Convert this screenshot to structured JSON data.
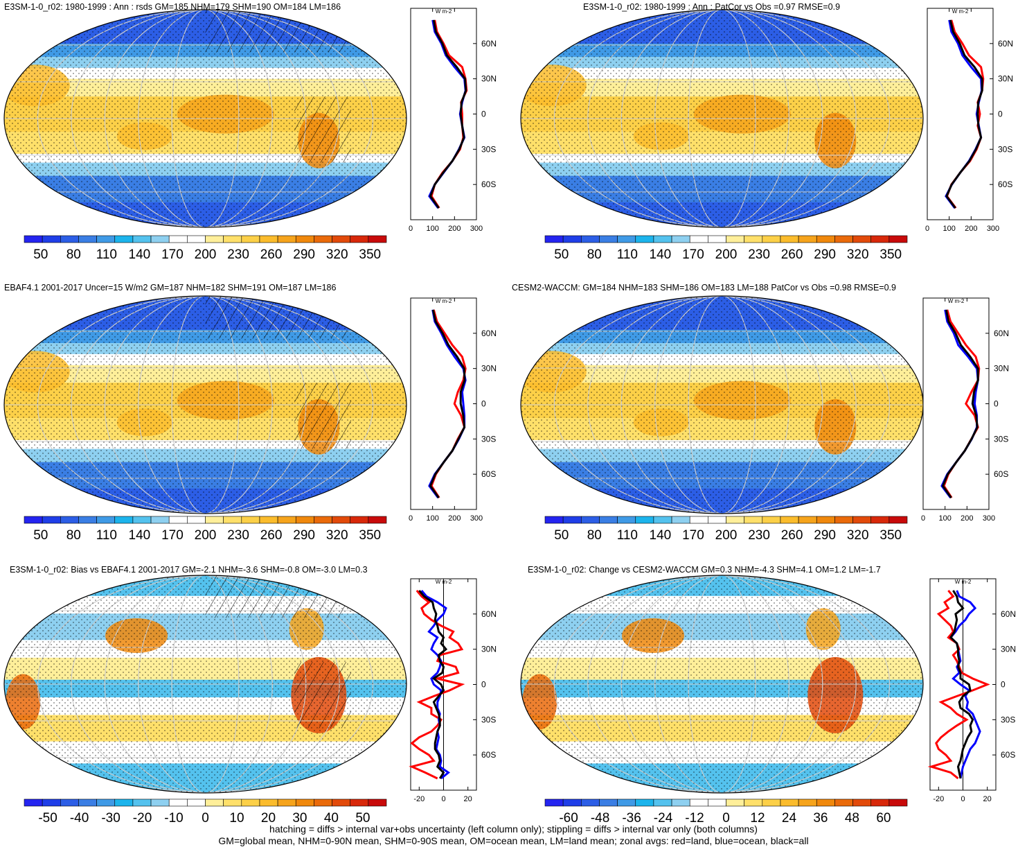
{
  "chart_data": [
    {
      "type": "heatmap",
      "title": "E3SM-1-0_r02: 1980-1999 : Ann : rsds GM=185 NHM=179 SHM=190 OM=184 LM=186",
      "colorbar_ticks": [
        "50",
        "80",
        "110",
        "140",
        "170",
        "200",
        "230",
        "260",
        "290",
        "320",
        "350"
      ],
      "colorbar_range": [
        35,
        365
      ],
      "hatching": true,
      "zonal": {
        "unit": "W m-2",
        "xticks": [
          "0",
          "100",
          "200",
          "300"
        ],
        "xlim": [
          0,
          300
        ],
        "yticks": [
          "60N",
          "30N",
          "0",
          "30S",
          "60S"
        ],
        "lat": [
          80,
          70,
          60,
          50,
          40,
          30,
          20,
          10,
          0,
          -10,
          -20,
          -30,
          -40,
          -50,
          -60,
          -70,
          -80
        ],
        "land": [
          110,
          120,
          150,
          175,
          235,
          250,
          255,
          230,
          235,
          235,
          240,
          225,
          190,
          145,
          110,
          95,
          130
        ],
        "ocean": [
          100,
          110,
          140,
          160,
          200,
          245,
          250,
          235,
          225,
          235,
          245,
          220,
          190,
          150,
          110,
          85,
          125
        ],
        "all": [
          105,
          115,
          145,
          165,
          210,
          248,
          252,
          232,
          228,
          235,
          243,
          222,
          190,
          148,
          110,
          90,
          128
        ]
      }
    },
    {
      "type": "heatmap",
      "title": "E3SM-1-0_r02: 1980-1999 : Ann : PatCor vs Obs =0.97 RMSE=0.9",
      "colorbar_ticks": [
        "50",
        "80",
        "110",
        "140",
        "170",
        "200",
        "230",
        "260",
        "290",
        "320",
        "350"
      ],
      "colorbar_range": [
        35,
        365
      ],
      "hatching": false,
      "zonal": {
        "unit": "W m-2",
        "xticks": [
          "0",
          "100",
          "200",
          "300"
        ],
        "xlim": [
          0,
          300
        ],
        "yticks": [
          "60N",
          "30N",
          "0",
          "30S",
          "60S"
        ],
        "lat": [
          80,
          70,
          60,
          50,
          40,
          30,
          20,
          10,
          0,
          -10,
          -20,
          -30,
          -40,
          -50,
          -60,
          -70,
          -80
        ],
        "land": [
          110,
          125,
          160,
          190,
          245,
          255,
          250,
          230,
          240,
          230,
          245,
          225,
          195,
          150,
          110,
          90,
          130
        ],
        "ocean": [
          100,
          110,
          140,
          160,
          200,
          245,
          248,
          235,
          225,
          235,
          245,
          220,
          190,
          150,
          112,
          85,
          125
        ],
        "all": [
          105,
          118,
          148,
          170,
          215,
          250,
          250,
          232,
          230,
          233,
          245,
          222,
          192,
          150,
          111,
          88,
          128
        ]
      }
    },
    {
      "type": "heatmap",
      "title": "EBAF4.1 2001-2017 Uncer=15 W/m2 GM=187 NHM=182 SHM=191 OM=187 LM=186",
      "colorbar_ticks": [
        "50",
        "80",
        "110",
        "140",
        "170",
        "200",
        "230",
        "260",
        "290",
        "320",
        "350"
      ],
      "colorbar_range": [
        35,
        365
      ],
      "hatching": true,
      "zonal": {
        "unit": "W m-2",
        "xticks": [
          "0",
          "100",
          "200",
          "300"
        ],
        "xlim": [
          0,
          300
        ],
        "yticks": [
          "60N",
          "30N",
          "0",
          "30S",
          "60S"
        ],
        "lat": [
          80,
          70,
          60,
          50,
          40,
          30,
          20,
          10,
          0,
          -10,
          -20,
          -30,
          -40,
          -50,
          -60,
          -70,
          -80
        ],
        "land": [
          105,
          120,
          155,
          190,
          235,
          250,
          240,
          215,
          200,
          230,
          245,
          215,
          190,
          150,
          115,
          95,
          130
        ],
        "ocean": [
          100,
          110,
          140,
          165,
          200,
          240,
          250,
          235,
          240,
          245,
          245,
          220,
          190,
          150,
          110,
          85,
          125
        ],
        "all": [
          102,
          114,
          146,
          172,
          212,
          244,
          246,
          228,
          228,
          240,
          245,
          218,
          190,
          150,
          112,
          90,
          128
        ]
      }
    },
    {
      "type": "heatmap",
      "title": "CESM2-WACCM: GM=184 NHM=183 SHM=186 OM=183 LM=188 PatCor vs Obs =0.98 RMSE=0.9",
      "colorbar_ticks": [
        "50",
        "80",
        "110",
        "140",
        "170",
        "200",
        "230",
        "260",
        "290",
        "320",
        "350"
      ],
      "colorbar_range": [
        35,
        365
      ],
      "hatching": false,
      "zonal": {
        "unit": "W m-2",
        "xticks": [
          "0",
          "100",
          "200",
          "300"
        ],
        "xlim": [
          0,
          300
        ],
        "yticks": [
          "60N",
          "30N",
          "0",
          "30S",
          "60S"
        ],
        "lat": [
          80,
          70,
          60,
          50,
          40,
          30,
          20,
          10,
          0,
          -10,
          -20,
          -30,
          -40,
          -50,
          -60,
          -70,
          -80
        ],
        "land": [
          110,
          125,
          160,
          195,
          240,
          255,
          250,
          220,
          195,
          235,
          250,
          220,
          190,
          150,
          115,
          95,
          130
        ],
        "ocean": [
          100,
          110,
          140,
          160,
          205,
          245,
          250,
          240,
          235,
          245,
          245,
          222,
          190,
          150,
          110,
          85,
          125
        ],
        "all": [
          105,
          116,
          148,
          172,
          215,
          250,
          250,
          232,
          225,
          242,
          247,
          221,
          190,
          150,
          112,
          90,
          128
        ]
      }
    },
    {
      "type": "heatmap",
      "title": "E3SM-1-0_r02: Bias vs EBAF4.1 2001-2017 GM=-2.1 NHM=-3.6 SHM=-0.8 OM=-3.0 LM=0.3",
      "colorbar_ticks": [
        "-50",
        "-40",
        "-30",
        "-20",
        "-10",
        "0",
        "10",
        "20",
        "30",
        "40",
        "50"
      ],
      "colorbar_range": [
        -57.5,
        57.5
      ],
      "hatching": true,
      "zonal": {
        "unit": "W m-2",
        "xticks": [
          "-20",
          "0",
          "20"
        ],
        "xlim": [
          -27,
          27
        ],
        "yticks": [
          "60N",
          "30N",
          "0",
          "30S",
          "60S"
        ],
        "lat": [
          80,
          75,
          70,
          65,
          60,
          55,
          50,
          45,
          40,
          35,
          30,
          25,
          20,
          15,
          10,
          5,
          0,
          -5,
          -10,
          -15,
          -20,
          -25,
          -30,
          -35,
          -40,
          -45,
          -50,
          -55,
          -60,
          -65,
          -70,
          -75,
          -80
        ],
        "land": [
          -22,
          -18,
          -12,
          -18,
          -16,
          -10,
          -2,
          8,
          5,
          12,
          15,
          -3,
          -5,
          10,
          12,
          -5,
          15,
          5,
          -8,
          -20,
          -10,
          -10,
          -2,
          -5,
          -10,
          -20,
          -26,
          -20,
          -12,
          -8,
          -26,
          -15,
          -5
        ],
        "ocean": [
          -18,
          -14,
          -5,
          2,
          0,
          -5,
          -8,
          -12,
          -5,
          -8,
          -10,
          -5,
          -2,
          -3,
          -5,
          -10,
          -8,
          -2,
          -3,
          -5,
          -5,
          -3,
          -4,
          -3,
          -5,
          -4,
          -5,
          -6,
          -3,
          -2,
          -3,
          4,
          -2
        ],
        "all": [
          -20,
          -16,
          -9,
          -8,
          -6,
          -7,
          -5,
          -4,
          0,
          -2,
          2,
          -4,
          -3,
          0,
          -1,
          -8,
          -2,
          0,
          -4,
          -8,
          -6,
          -4,
          -3,
          -3,
          -5,
          -6,
          -7,
          -7,
          -4,
          -3,
          -5,
          0,
          -3
        ]
      }
    },
    {
      "type": "heatmap",
      "title": "E3SM-1-0_r02: Change vs CESM2-WACCM GM=0.3 NHM=-4.3 SHM=4.1 OM=1.2 LM=-1.7",
      "colorbar_ticks": [
        "-60",
        "-48",
        "-36",
        "-24",
        "-12",
        "0",
        "12",
        "24",
        "36",
        "48",
        "60"
      ],
      "colorbar_range": [
        -69,
        69
      ],
      "hatching": false,
      "zonal": {
        "unit": "W m-2",
        "xticks": [
          "-20",
          "0",
          "20"
        ],
        "xlim": [
          -27,
          27
        ],
        "yticks": [
          "60N",
          "30N",
          "0",
          "30S",
          "60S"
        ],
        "lat": [
          80,
          75,
          70,
          65,
          60,
          55,
          50,
          45,
          40,
          35,
          30,
          25,
          20,
          15,
          10,
          5,
          0,
          -5,
          -10,
          -15,
          -20,
          -25,
          -30,
          -35,
          -40,
          -45,
          -50,
          -55,
          -60,
          -65,
          -70,
          -75,
          -80
        ],
        "land": [
          -12,
          -8,
          -15,
          -12,
          -20,
          -15,
          -10,
          -8,
          -12,
          -5,
          -3,
          -8,
          -5,
          -3,
          -1,
          8,
          20,
          8,
          -5,
          -18,
          -10,
          -5,
          3,
          -5,
          -12,
          -18,
          -22,
          -20,
          -14,
          -10,
          -26,
          -10,
          -4
        ],
        "ocean": [
          -5,
          -3,
          6,
          10,
          5,
          2,
          -3,
          -6,
          -10,
          -5,
          -4,
          -3,
          -2,
          -5,
          -3,
          -8,
          -2,
          5,
          2,
          4,
          3,
          8,
          10,
          12,
          14,
          12,
          10,
          6,
          4,
          2,
          0,
          -1,
          -2
        ],
        "all": [
          -8,
          -5,
          -4,
          0,
          -6,
          -5,
          -6,
          -7,
          -10,
          -5,
          -4,
          -4,
          -3,
          -4,
          -2,
          -2,
          5,
          6,
          0,
          -3,
          -2,
          5,
          8,
          6,
          7,
          4,
          2,
          0,
          -1,
          -2,
          -4,
          -3,
          -2
        ]
      }
    }
  ],
  "footer": {
    "line1": "hatching = diffs > internal var+obs uncertainty (left column only); stippling = diffs > internal var only (both columns)",
    "line2": "GM=global mean, NHM=0-90N mean, SHM=0-90S mean, OM=ocean mean, LM=land mean; zonal avgs: red=land, blue=ocean, black=all"
  },
  "colors": {
    "land": "#ff0000",
    "ocean": "#0000ff",
    "all": "#000000",
    "palette": [
      "#2424f0",
      "#1f3ee8",
      "#2c5ee6",
      "#3a7ee4",
      "#3f9ae6",
      "#1cb4ec",
      "#54c2ee",
      "#8ed0f0",
      "#ffffff",
      "#ffffff",
      "#ffef9a",
      "#ffe06a",
      "#fcd048",
      "#fbbc2c",
      "#f6a41c",
      "#f0880c",
      "#ea6a0a",
      "#e24a0a",
      "#d8280a",
      "#c80a0a"
    ]
  }
}
